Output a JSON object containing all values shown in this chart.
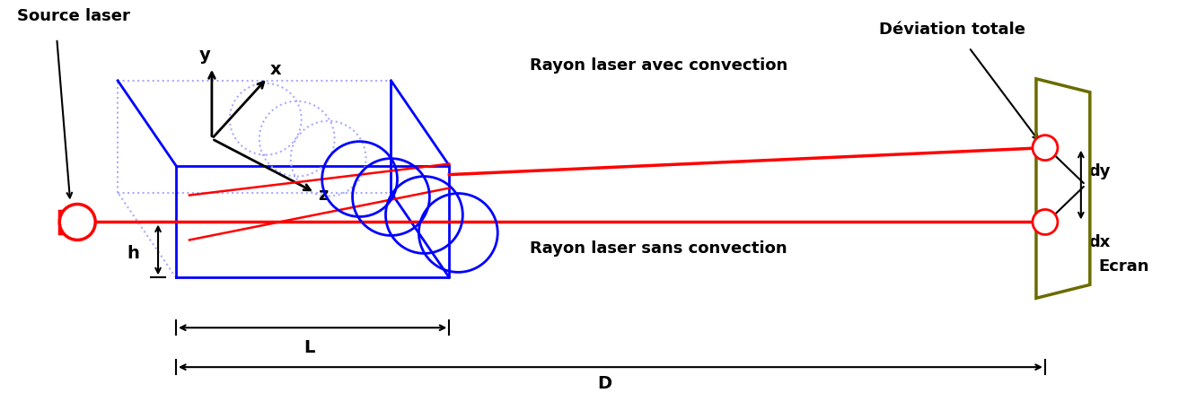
{
  "bg_color": "#ffffff",
  "blue": "#0000ff",
  "blue_light": "#aaaaff",
  "red": "#ff0000",
  "black": "#000000",
  "olive": "#6b6b00",
  "figsize": [
    13.32,
    4.38
  ],
  "dpi": 100,
  "source_laser_label": "Source laser",
  "rayon_avec_label": "Rayon laser avec convection",
  "rayon_sans_label": "Rayon laser sans convection",
  "deviation_label": "Déviation totale",
  "ecran_label": "Ecran",
  "L_label": "L",
  "D_label": "D",
  "h_label": "h",
  "x_label": "x",
  "y_label": "y",
  "z_label": "z",
  "dy_label": "dy",
  "dx_label": "dx"
}
